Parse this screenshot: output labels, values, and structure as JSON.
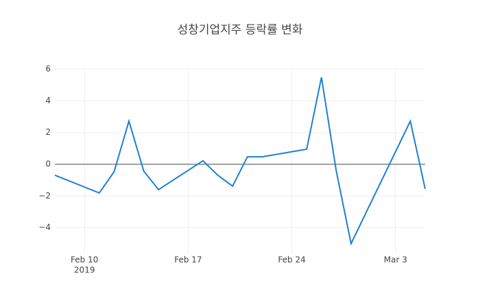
{
  "chart_data": {
    "type": "line",
    "title": "성창기업지주 등락률 변화",
    "x": [
      "2019-02-08",
      "2019-02-11",
      "2019-02-12",
      "2019-02-13",
      "2019-02-14",
      "2019-02-15",
      "2019-02-18",
      "2019-02-19",
      "2019-02-20",
      "2019-02-21",
      "2019-02-22",
      "2019-02-25",
      "2019-02-26",
      "2019-02-27",
      "2019-02-28",
      "2019-03-04",
      "2019-03-05"
    ],
    "series": [
      {
        "color": "#1b7fd6",
        "values": [
          -0.69,
          -1.81,
          -0.47,
          2.72,
          -0.43,
          -1.6,
          0.22,
          -0.69,
          -1.38,
          0.47,
          0.47,
          0.95,
          5.48,
          -0.43,
          -5.0,
          2.72,
          -1.55
        ]
      }
    ],
    "xlim": [
      "2019-02-08",
      "2019-03-05"
    ],
    "xticks": [
      {
        "value": "2019-02-10",
        "label": [
          "Feb 10",
          "2019"
        ]
      },
      {
        "value": "2019-02-17",
        "label": "Feb 17"
      },
      {
        "value": "2019-02-24",
        "label": "Feb 24"
      },
      {
        "value": "2019-03-03",
        "label": "Mar 3"
      }
    ],
    "ylim": [
      -5.61,
      6.04
    ],
    "yticks": [
      {
        "value": -4,
        "label": "−4"
      },
      {
        "value": -2,
        "label": "−2"
      },
      0,
      2,
      4,
      6
    ],
    "grid": true,
    "zeroline": true
  }
}
